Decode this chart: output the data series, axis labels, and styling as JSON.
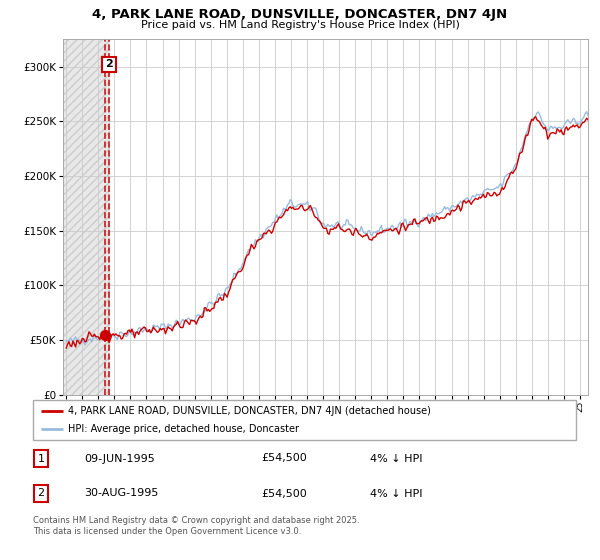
{
  "title": "4, PARK LANE ROAD, DUNSVILLE, DONCASTER, DN7 4JN",
  "subtitle": "Price paid vs. HM Land Registry's House Price Index (HPI)",
  "legend_entry1": "4, PARK LANE ROAD, DUNSVILLE, DONCASTER, DN7 4JN (detached house)",
  "legend_entry2": "HPI: Average price, detached house, Doncaster",
  "sale1_date": "09-JUN-1995",
  "sale1_price": "£54,500",
  "sale1_hpi": "4% ↓ HPI",
  "sale2_date": "30-AUG-1995",
  "sale2_price": "£54,500",
  "sale2_hpi": "4% ↓ HPI",
  "footer": "Contains HM Land Registry data © Crown copyright and database right 2025.\nThis data is licensed under the Open Government Licence v3.0.",
  "line_color_property": "#cc0000",
  "line_color_hpi": "#99bbdd",
  "marker_color": "#cc0000",
  "dashed_line_color": "#cc0000",
  "annotation_border_color": "#cc0000",
  "ylim": [
    0,
    325000
  ],
  "yticks": [
    0,
    50000,
    100000,
    150000,
    200000,
    250000,
    300000
  ],
  "sale_date_x1": 1995.44,
  "sale_date_x2": 1995.66,
  "sale_price_y": 54500,
  "xmin": 1992.8,
  "xmax": 2025.5
}
